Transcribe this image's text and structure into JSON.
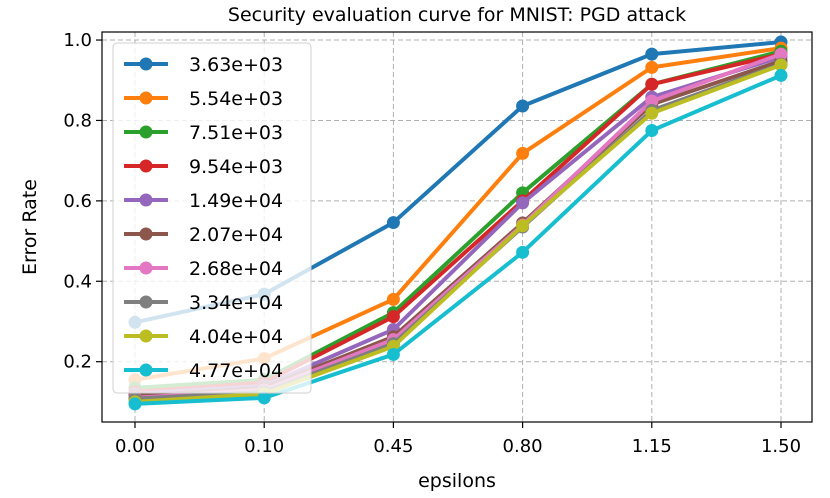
{
  "chart_data": {
    "type": "line",
    "title": "Security evaluation curve for MNIST: PGD attack",
    "xlabel": "epsilons",
    "ylabel": "Error Rate",
    "categories": [
      "0.00",
      "0.10",
      "0.45",
      "0.80",
      "1.15",
      "1.50"
    ],
    "yticks": [
      "0.2",
      "0.4",
      "0.6",
      "0.8",
      "1.0"
    ],
    "ylim": [
      0.05,
      1.02
    ],
    "grid": true,
    "legend_position": "top-left",
    "series": [
      {
        "name": "3.63e+03",
        "color": "#1f77b4",
        "values": [
          0.298,
          0.368,
          0.546,
          0.836,
          0.965,
          0.995
        ]
      },
      {
        "name": "5.54e+03",
        "color": "#ff7f0e",
        "values": [
          0.155,
          0.208,
          0.355,
          0.718,
          0.932,
          0.98
        ]
      },
      {
        "name": "7.51e+03",
        "color": "#2ca02c",
        "values": [
          0.135,
          0.155,
          0.322,
          0.62,
          0.89,
          0.972
        ]
      },
      {
        "name": "9.54e+03",
        "color": "#d62728",
        "values": [
          0.125,
          0.148,
          0.312,
          0.6,
          0.89,
          0.965
        ]
      },
      {
        "name": "1.49e+04",
        "color": "#9467bd",
        "values": [
          0.12,
          0.14,
          0.28,
          0.595,
          0.858,
          0.958
        ]
      },
      {
        "name": "2.07e+04",
        "color": "#8c564b",
        "values": [
          0.115,
          0.135,
          0.262,
          0.545,
          0.84,
          0.948
        ]
      },
      {
        "name": "2.68e+04",
        "color": "#e377c2",
        "values": [
          0.11,
          0.13,
          0.255,
          0.54,
          0.848,
          0.965
        ]
      },
      {
        "name": "3.34e+04",
        "color": "#7f7f7f",
        "values": [
          0.108,
          0.125,
          0.245,
          0.535,
          0.825,
          0.94
        ]
      },
      {
        "name": "4.04e+04",
        "color": "#bcbd22",
        "values": [
          0.1,
          0.12,
          0.238,
          0.538,
          0.818,
          0.938
        ]
      },
      {
        "name": "4.77e+04",
        "color": "#17becf",
        "values": [
          0.095,
          0.11,
          0.218,
          0.472,
          0.775,
          0.912
        ]
      }
    ]
  }
}
